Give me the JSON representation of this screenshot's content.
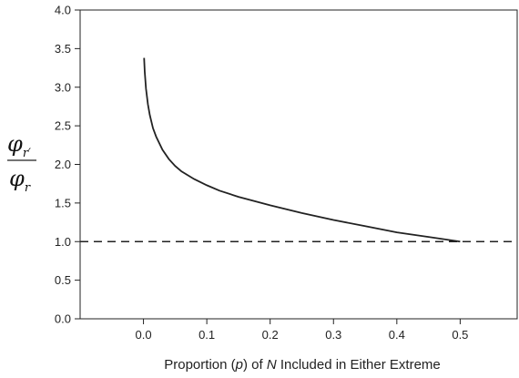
{
  "chart_data": {
    "type": "line",
    "title": "",
    "xlabel": {
      "prefix": "Proportion (",
      "p": "p",
      "middle": ") of ",
      "n": "N",
      "suffix": " Included in Either Extreme"
    },
    "ylabel": {
      "numerator_symbol": "φ",
      "numerator_subscript": "r′",
      "denominator_symbol": "φ",
      "denominator_subscript": "r"
    },
    "xlim": [
      -0.1,
      0.59
    ],
    "ylim": [
      0,
      4
    ],
    "x_ticks": [
      0.0,
      0.1,
      0.2,
      0.3,
      0.4,
      0.5
    ],
    "x_tick_labels": [
      "0.0",
      "0.1",
      "0.2",
      "0.3",
      "0.4",
      "0.5"
    ],
    "y_ticks": [
      0,
      0.5,
      1.0,
      1.5,
      2.0,
      2.5,
      3.0,
      3.5,
      4.0
    ],
    "y_tick_labels": [
      "0.0",
      "0.5",
      "1.0",
      "1.5",
      "2.0",
      "2.5",
      "3.0",
      "3.5",
      "4.0"
    ],
    "grid": false,
    "series": [
      {
        "style": "solid",
        "color": "#222222",
        "x": [
          0.001,
          0.002,
          0.004,
          0.007,
          0.01,
          0.015,
          0.02,
          0.03,
          0.04,
          0.05,
          0.06,
          0.08,
          0.1,
          0.12,
          0.15,
          0.2,
          0.25,
          0.3,
          0.35,
          0.4,
          0.45,
          0.5
        ],
        "y": [
          3.38,
          3.2,
          2.98,
          2.78,
          2.64,
          2.47,
          2.36,
          2.19,
          2.07,
          1.98,
          1.91,
          1.81,
          1.73,
          1.66,
          1.58,
          1.47,
          1.37,
          1.28,
          1.2,
          1.12,
          1.06,
          1.0
        ]
      },
      {
        "style": "dashed",
        "color": "#222222",
        "x": [
          -0.1,
          0.59
        ],
        "y": [
          1.0,
          1.0
        ]
      }
    ]
  }
}
